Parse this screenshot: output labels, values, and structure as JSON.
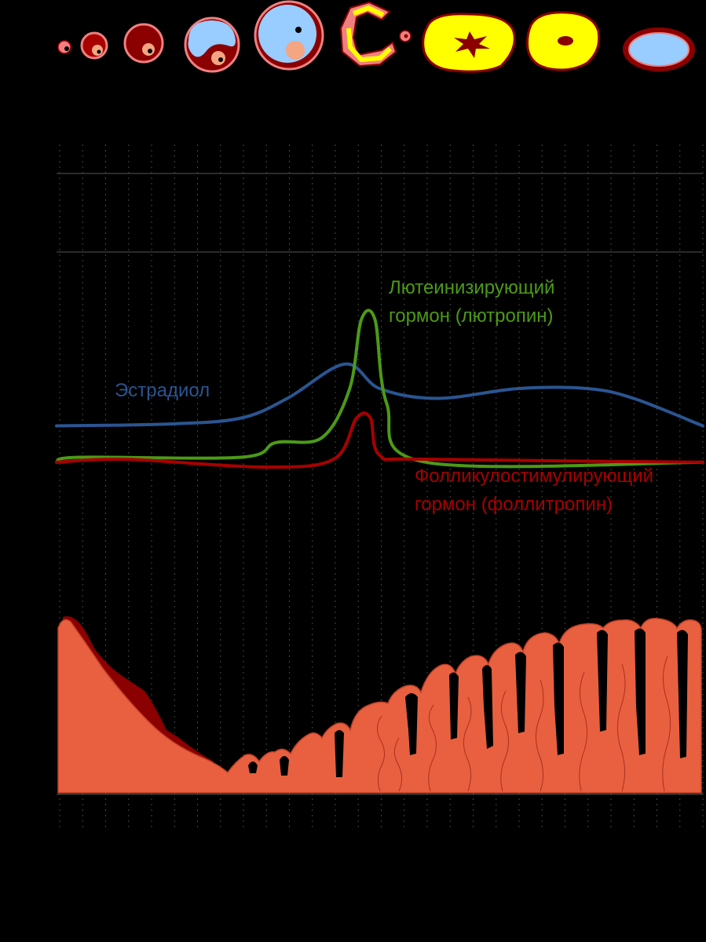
{
  "labels": {
    "lh_line1": "Лютеинизирующий",
    "lh_line2": "гормон (лютропин)",
    "estradiol": "Эстрадиол",
    "fsh_line1": "Фолликулостимулирующий",
    "fsh_line2": "гормон (фоллитропин)"
  },
  "colors": {
    "background": "#000000",
    "estradiol": "#2a5591",
    "lh": "#4c9a16",
    "fsh": "#a80000",
    "endometrium": "#e8603f",
    "endometrium_dark": "#8b0000",
    "follicle_fluid": "#99ccff",
    "follicle_wall": "#f08080",
    "corpus_luteum": "#ffff00",
    "gridline": "#555555"
  },
  "follicle_stages": [
    "primordial-follicle",
    "primary-follicle",
    "secondary-follicle",
    "early-antral-follicle",
    "mature-graafian-follicle",
    "ovulation",
    "early-corpus-luteum",
    "corpus-luteum",
    "corpus-albicans"
  ],
  "chart_data": {
    "type": "line",
    "x_divisions": 28,
    "series": [
      {
        "name": "Эстрадиол",
        "color": "#2a5591",
        "values": [
          [
            0,
            0.62
          ],
          [
            5,
            0.64
          ],
          [
            8,
            0.7
          ],
          [
            10,
            0.9
          ],
          [
            12.5,
            1.25
          ],
          [
            14,
            1.0
          ],
          [
            16.5,
            0.9
          ],
          [
            20,
            1.0
          ],
          [
            23,
            1.0
          ],
          [
            25,
            0.9
          ],
          [
            28,
            0.62
          ]
        ]
      },
      {
        "name": "Лютеинизирующий гормон (лютропин)",
        "color": "#4c9a16",
        "values": [
          [
            0,
            0.25
          ],
          [
            1,
            0.3
          ],
          [
            8,
            0.3
          ],
          [
            9.5,
            0.45
          ],
          [
            11.5,
            0.5
          ],
          [
            12.7,
            1.0
          ],
          [
            13.2,
            1.7
          ],
          [
            13.8,
            1.7
          ],
          [
            14.3,
            0.85
          ],
          [
            16,
            0.25
          ],
          [
            28,
            0.25
          ]
        ]
      },
      {
        "name": "Фолликулостимулирующий гормон (фоллитропин)",
        "color": "#a80000",
        "values": [
          [
            0,
            0.25
          ],
          [
            3,
            0.28
          ],
          [
            9,
            0.2
          ],
          [
            12,
            0.28
          ],
          [
            13,
            0.7
          ],
          [
            13.6,
            0.7
          ],
          [
            14,
            0.32
          ],
          [
            16,
            0.28
          ],
          [
            28,
            0.25
          ]
        ]
      }
    ]
  }
}
